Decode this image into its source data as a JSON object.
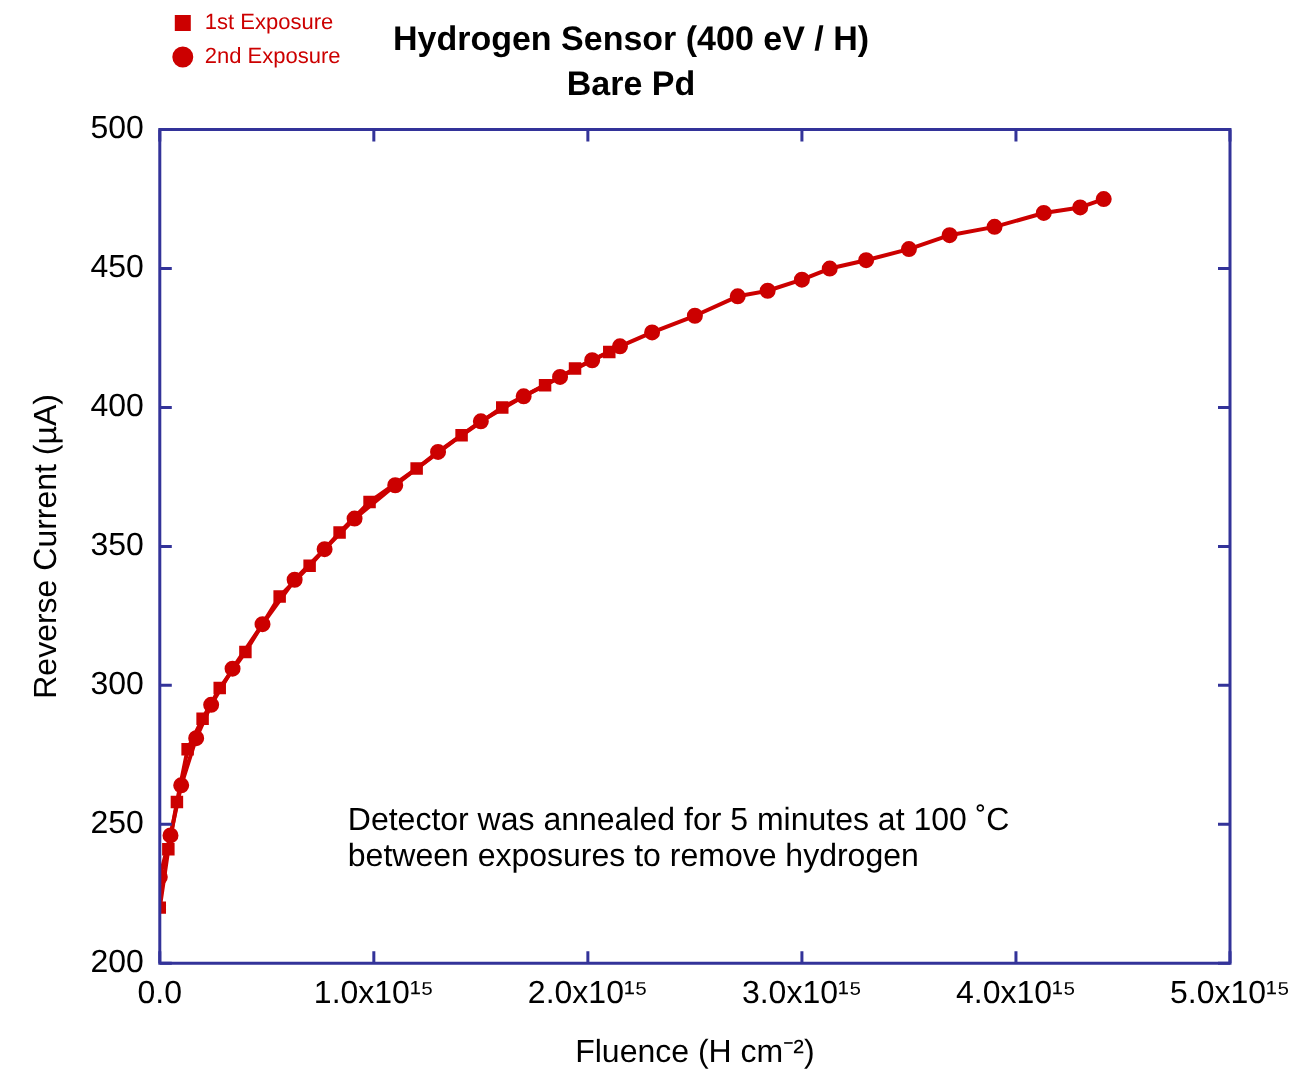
{
  "chart_data": {
    "type": "line",
    "title": "Hydrogen Sensor (400 eV / H)",
    "subtitle": "Bare Pd",
    "xlabel": "Fluence (H cm⁻²)",
    "ylabel": "Reverse Current (µA)",
    "xlim": [
      0,
      5000000000000000.0
    ],
    "xticks": [
      {
        "value": 0,
        "label": "0.0"
      },
      {
        "value": 1000000000000000.0,
        "label": "1.0x10¹⁵"
      },
      {
        "value": 2000000000000000.0,
        "label": "2.0x10¹⁵"
      },
      {
        "value": 3000000000000000.0,
        "label": "3.0x10¹⁵"
      },
      {
        "value": 4000000000000000.0,
        "label": "4.0x10¹⁵"
      },
      {
        "value": 5000000000000000.0,
        "label": "5.0x10¹⁵"
      }
    ],
    "ylim": [
      200,
      500
    ],
    "yticks": [
      200,
      250,
      300,
      350,
      400,
      450,
      500
    ],
    "grid": false,
    "legend": "top left",
    "line_style": "solid",
    "series": [
      {
        "name": "1st Exposure",
        "color": "#cc0000",
        "marker": "square",
        "x": [
          0,
          40000000000000.0,
          80000000000000.0,
          130000000000000.0,
          200000000000000.0,
          280000000000000.0,
          400000000000000.0,
          560000000000000.0,
          700000000000000.0,
          840000000000000.0,
          980000000000000.0,
          1200000000000000.0,
          1410000000000000.0,
          1600000000000000.0,
          1800000000000000.0,
          1940000000000000.0,
          2100000000000000.0
        ],
        "values": [
          220,
          241,
          258,
          277,
          288,
          299,
          312,
          332,
          343,
          355,
          366,
          378,
          390,
          400,
          408,
          414,
          420
        ]
      },
      {
        "name": "2nd Exposure",
        "color": "#cc0000",
        "marker": "circle",
        "x": [
          0,
          50000000000000.0,
          100000000000000.0,
          170000000000000.0,
          240000000000000.0,
          340000000000000.0,
          480000000000000.0,
          630000000000000.0,
          770000000000000.0,
          910000000000000.0,
          1100000000000000.0,
          1300000000000000.0,
          1500000000000000.0,
          1700000000000000.0,
          1870000000000000.0,
          2020000000000000.0,
          2150000000000000.0,
          2300000000000000.0,
          2500000000000000.0,
          2700000000000000.0,
          2840000000000000.0,
          3000000000000000.0,
          3130000000000000.0,
          3300000000000000.0,
          3500000000000000.0,
          3690000000000000.0,
          3900000000000000.0,
          4130000000000000.0,
          4300000000000000.0,
          4410000000000000.0
        ],
        "values": [
          231,
          246,
          264,
          281,
          293,
          306,
          322,
          338,
          349,
          360,
          372,
          384,
          395,
          404,
          411,
          417,
          422,
          427,
          433,
          440,
          442,
          446,
          450,
          453,
          457,
          462,
          465,
          470,
          472,
          475
        ]
      }
    ],
    "annotations": [
      "Detector was annealed for 5 minutes at 100 ˚C\nbetween exposures to remove hydrogen"
    ]
  }
}
